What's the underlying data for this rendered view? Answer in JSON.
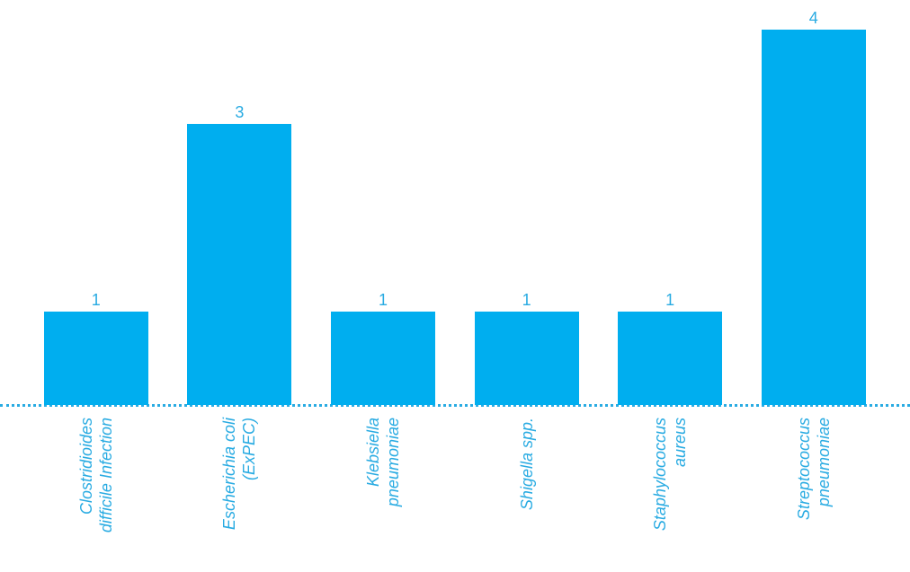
{
  "chart_data": {
    "type": "bar",
    "categories": [
      "Clostridioides difficile Infection",
      "Escherichia coli (ExPEC)",
      "Klebsiella pneumoniae",
      "Shigella spp.",
      "Staphylococcus aureus",
      "Streptococcus pneumoniae"
    ],
    "values": [
      1,
      3,
      1,
      1,
      1,
      4
    ],
    "color": "#00aeef"
  }
}
